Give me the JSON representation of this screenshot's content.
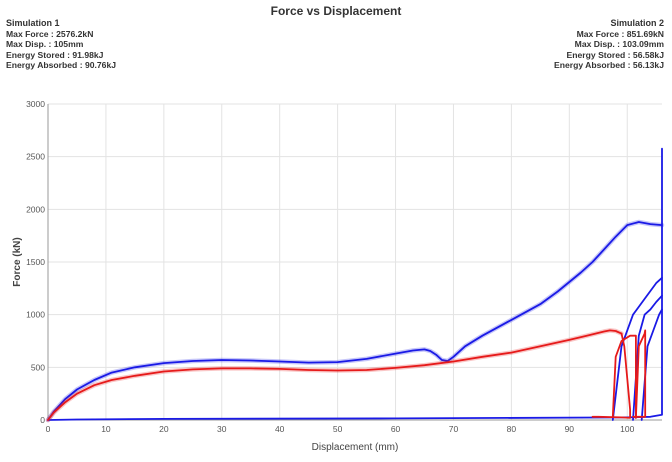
{
  "chart_data": {
    "type": "line",
    "title": "Force vs Displacement",
    "xlabel": "Displacement (mm)",
    "ylabel": "Force (kN)",
    "xlim": [
      0,
      106
    ],
    "ylim": [
      0,
      3000
    ],
    "xticks": [
      "0",
      "10",
      "20",
      "30",
      "40",
      "50",
      "60",
      "70",
      "80",
      "90",
      "100"
    ],
    "yticks": [
      "0",
      "500",
      "1000",
      "1500",
      "2000",
      "2500",
      "3000"
    ],
    "grid": true,
    "series": [
      {
        "name": "Simulation 1",
        "color": "#1a1ae6",
        "info": [
          "Max Force : 2576.2kN",
          "Max Disp. : 105mm",
          "Energy Stored : 91.98kJ",
          "Energy Absorbed : 90.76kJ"
        ],
        "x": [
          0,
          1,
          3,
          5,
          8,
          11,
          15,
          20,
          25,
          30,
          35,
          40,
          45,
          50,
          55,
          60,
          63,
          65,
          66,
          67,
          68,
          69,
          70,
          72,
          75,
          80,
          85,
          88,
          90,
          92,
          94,
          96,
          98,
          100,
          102,
          104,
          106
        ],
        "y": [
          0,
          80,
          200,
          290,
          380,
          450,
          500,
          540,
          560,
          570,
          565,
          555,
          545,
          550,
          580,
          630,
          660,
          670,
          655,
          620,
          570,
          560,
          600,
          700,
          800,
          950,
          1100,
          1220,
          1310,
          1400,
          1500,
          1620,
          1740,
          1850,
          1880,
          1860,
          1850
        ],
        "unloading": [
          {
            "x": [
              106,
              106,
              106,
              104,
              100,
              60,
              20,
              5,
              0
            ],
            "y": [
              2576,
              1800,
              50,
              30,
              25,
              15,
              10,
              5,
              0
            ]
          },
          {
            "x": [
              97.5,
              99,
              101,
              103,
              105,
              106
            ],
            "y": [
              0,
              700,
              1000,
              1150,
              1300,
              1350
            ]
          },
          {
            "x": [
              101,
              102,
              103,
              104,
              105,
              106
            ],
            "y": [
              0,
              800,
              1000,
              1050,
              1120,
              1180
            ]
          },
          {
            "x": [
              102.5,
              103.5,
              104.5,
              105.5,
              106
            ],
            "y": [
              0,
              700,
              850,
              1000,
              1050
            ]
          }
        ]
      },
      {
        "name": "Simulation 2",
        "color": "#e61a1a",
        "info": [
          "Max Force : 851.69kN",
          "Max Disp. : 103.09mm",
          "Energy Stored : 56.58kJ",
          "Energy Absorbed : 56.13kJ"
        ],
        "x": [
          0,
          1,
          3,
          5,
          8,
          11,
          15,
          20,
          25,
          30,
          35,
          40,
          45,
          50,
          55,
          60,
          65,
          70,
          75,
          80,
          85,
          90,
          93,
          96,
          97,
          98,
          99
        ],
        "y": [
          0,
          70,
          170,
          250,
          330,
          380,
          420,
          460,
          480,
          490,
          490,
          485,
          475,
          470,
          475,
          495,
          520,
          555,
          600,
          640,
          700,
          760,
          800,
          840,
          851,
          845,
          820
        ],
        "unloading": [
          {
            "x": [
              99,
              99.5,
              100,
              100.5,
              100.5,
              99,
              95,
              94
            ],
            "y": [
              820,
              700,
              400,
              100,
              20,
              25,
              30,
              30
            ]
          },
          {
            "x": [
              97.5,
              98,
              99,
              100.5,
              101.5,
              101.5
            ],
            "y": [
              30,
              600,
              750,
              800,
              800,
              20
            ]
          },
          {
            "x": [
              101.5,
              102,
              103,
              103.1,
              103.1,
              101
            ],
            "y": [
              20,
              700,
              820,
              851,
              30,
              30
            ]
          }
        ]
      }
    ]
  }
}
